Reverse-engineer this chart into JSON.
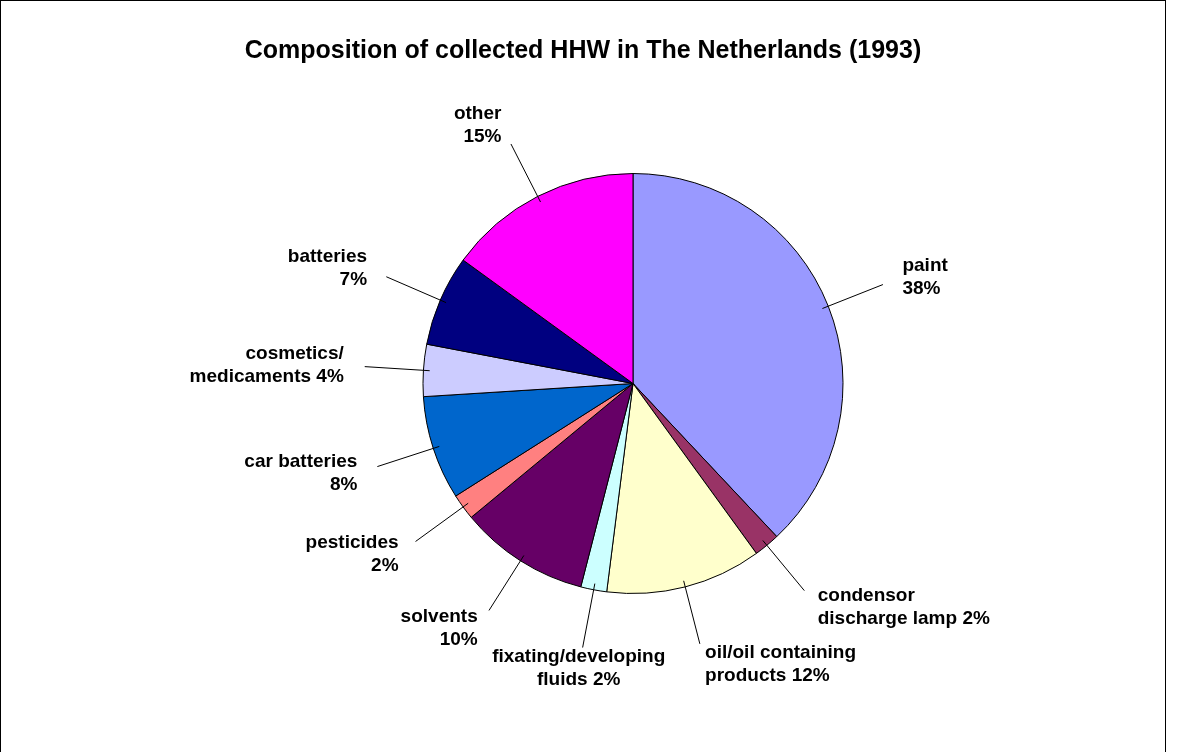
{
  "chart_data": {
    "type": "pie",
    "title": "Composition of collected HHW in The Netherlands (1993)",
    "categories": [
      "paint",
      "condensor discharge lamp",
      "oil/oil containing products",
      "fixating/developing fluids",
      "solvents",
      "pesticides",
      "car batteries",
      "cosmetics/ medicaments",
      "batteries",
      "other"
    ],
    "values": [
      38,
      2,
      12,
      2,
      10,
      2,
      8,
      4,
      7,
      15
    ],
    "colors": [
      "#9999ff",
      "#993366",
      "#ffffcc",
      "#ccffff",
      "#660066",
      "#ff8080",
      "#0066cc",
      "#ccccff",
      "#000080",
      "#ff00ff"
    ],
    "value_labels": [
      "38%",
      "2%",
      "12%",
      "2%",
      "10%",
      "2%",
      "8%",
      "4%",
      "7%",
      "15%"
    ],
    "legend": false
  }
}
